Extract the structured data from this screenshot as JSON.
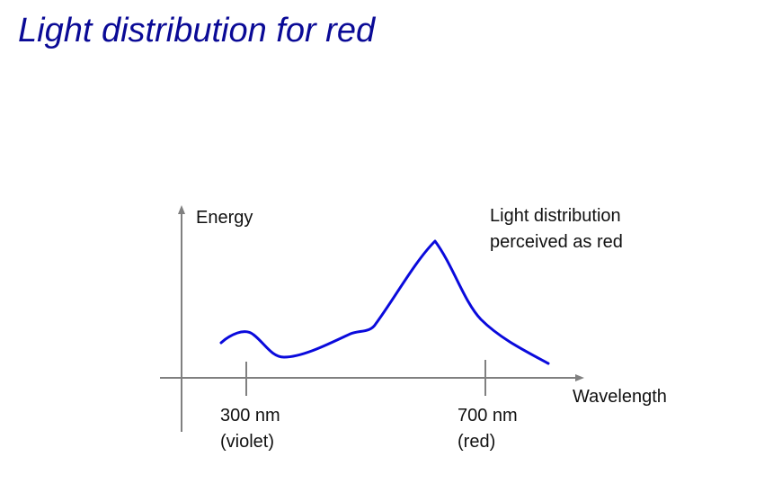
{
  "slide": {
    "title": "Light distribution for red"
  },
  "diagram": {
    "y_axis_label": "Energy",
    "x_axis_label": "Wavelength",
    "curve_label_line1": "Light distribution",
    "curve_label_line2": "perceived as red",
    "ticks": [
      {
        "value": "300 nm",
        "caption": "(violet)"
      },
      {
        "value": "700 nm",
        "caption": "(red)"
      }
    ],
    "colors": {
      "title": "#0a0a96",
      "curve": "#0a0adc",
      "axis": "#808080",
      "text": "#111111"
    }
  }
}
